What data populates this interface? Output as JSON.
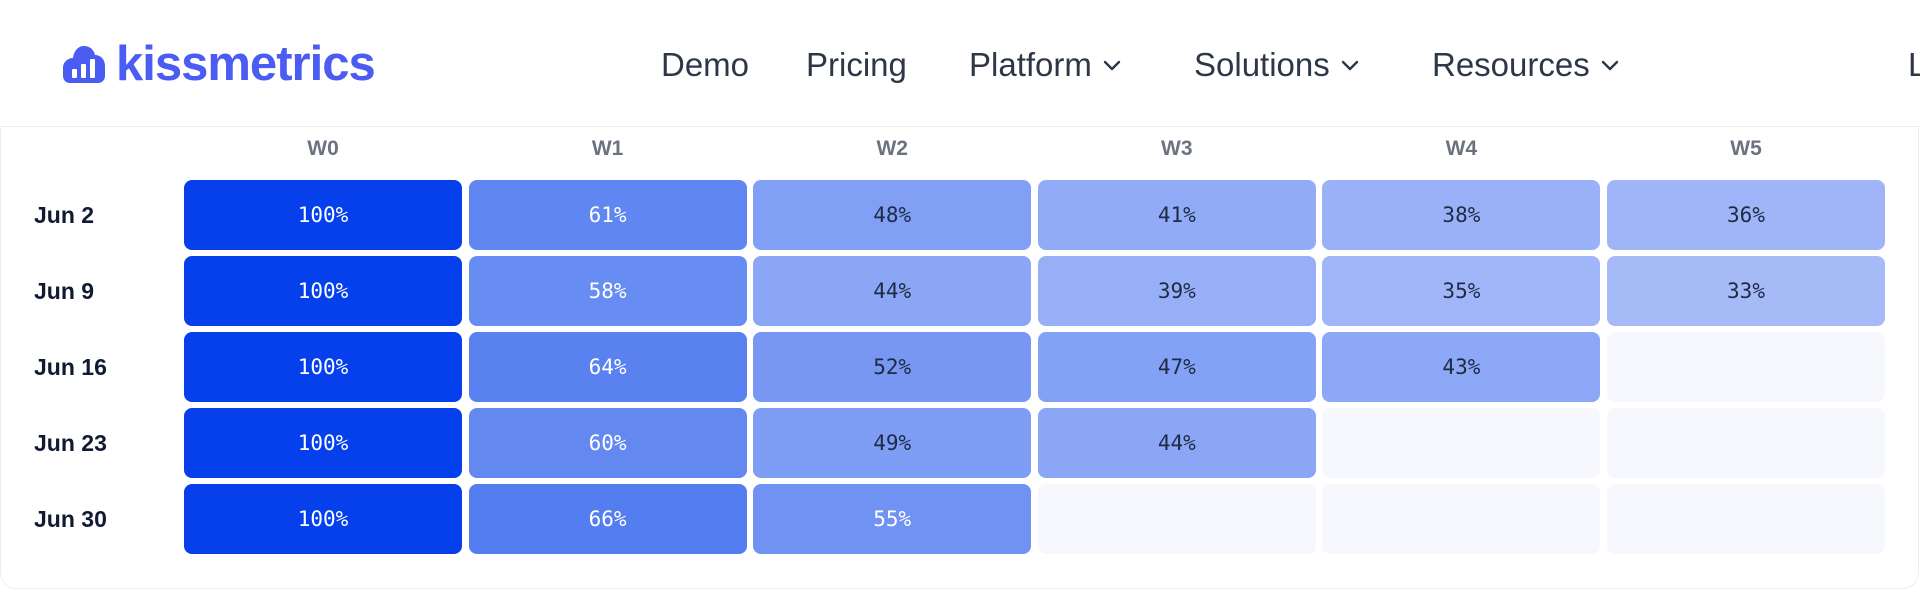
{
  "header": {
    "logo_text": "kissmetrics",
    "logo_icon": "bar-chart-cloud-icon",
    "nav": [
      {
        "label": "Demo",
        "has_dropdown": false
      },
      {
        "label": "Pricing",
        "has_dropdown": false
      },
      {
        "label": "Platform",
        "has_dropdown": true
      },
      {
        "label": "Solutions",
        "has_dropdown": true
      },
      {
        "label": "Resources",
        "has_dropdown": true
      },
      {
        "label": "L",
        "has_dropdown": false
      }
    ]
  },
  "cohort": {
    "columns": [
      "W0",
      "W1",
      "W2",
      "W3",
      "W4",
      "W5"
    ],
    "rows": [
      {
        "label": "Jun 2",
        "values": [
          "100%",
          "61%",
          "48%",
          "41%",
          "38%",
          "36%"
        ]
      },
      {
        "label": "Jun 9",
        "values": [
          "100%",
          "58%",
          "44%",
          "39%",
          "35%",
          "33%"
        ]
      },
      {
        "label": "Jun 16",
        "values": [
          "100%",
          "64%",
          "52%",
          "47%",
          "43%",
          null
        ]
      },
      {
        "label": "Jun 23",
        "values": [
          "100%",
          "60%",
          "49%",
          "44%",
          null,
          null
        ]
      },
      {
        "label": "Jun 30",
        "values": [
          "100%",
          "66%",
          "55%",
          null,
          null,
          null
        ]
      }
    ]
  },
  "colors": {
    "brand": "#4a5cf2",
    "full": "#0540ec",
    "empty_cell": "#f7f8fd"
  }
}
